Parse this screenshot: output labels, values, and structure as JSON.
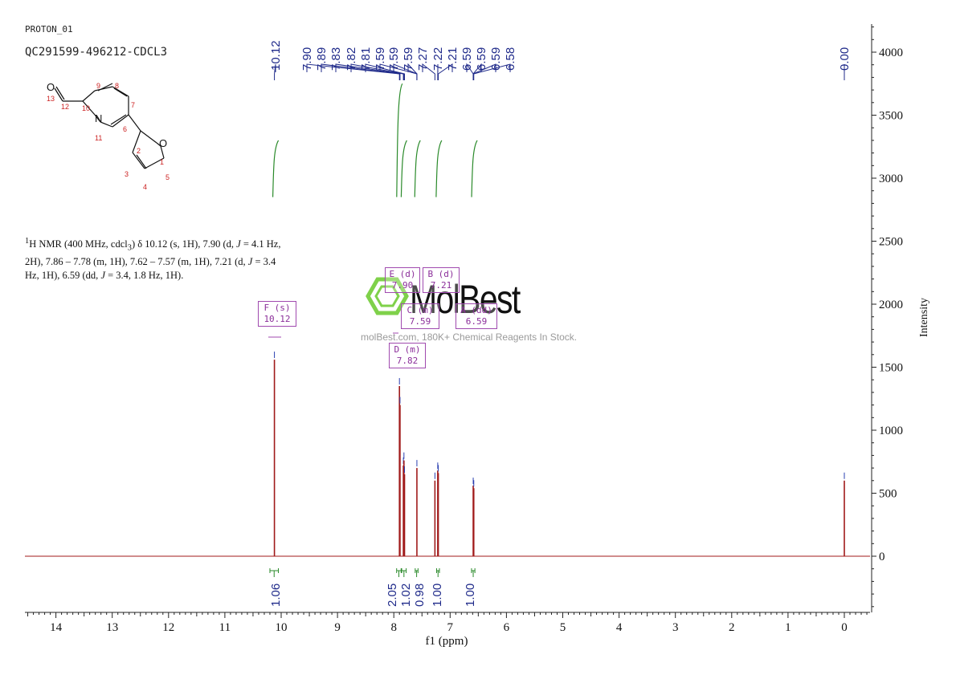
{
  "header": {
    "experiment": "PROTON_01",
    "sample": "QC291599-496212-CDCL3"
  },
  "description": {
    "sup": "1",
    "line1_a": "H NMR (400 MHz, cdcl",
    "line1_sub": "3",
    "line1_b": ") δ 10.12 (s, 1H), 7.90 (d, ",
    "j": "J",
    "line1_c": " = 4.1 Hz,",
    "line2_a": "2H), 7.86 – 7.78 (m, 1H), 7.62 – 7.57 (m, 1H), 7.21 (d, ",
    "line2_b": " = 3.4",
    "line3_a": "Hz, 1H), 6.59 (dd, ",
    "line3_b": " = 3.4, 1.8 Hz, 1H)."
  },
  "watermark": {
    "brand": "MolBest",
    "subtitle": "molBest.com, 180K+ Chemical Reagents In Stock."
  },
  "molecule": {
    "atoms": [
      "O",
      "13",
      "12",
      "9",
      "8",
      "10",
      "7",
      "N",
      "11",
      "6",
      "2",
      "O",
      "1",
      "5",
      "3",
      "4"
    ]
  },
  "multiplets": [
    {
      "label": "F (s)",
      "value": "10.12"
    },
    {
      "label": "E (d)",
      "value": "7.90"
    },
    {
      "label": "B (d)",
      "value": "7.21"
    },
    {
      "label": "C (m)",
      "value": "7.59"
    },
    {
      "label": "A (dd)",
      "value": "6.59"
    },
    {
      "label": "D (m)",
      "value": "7.82"
    }
  ],
  "peak_labels_top": [
    "10.12",
    "7.90",
    "7.89",
    "7.83",
    "7.82",
    "7.81",
    "7.59",
    "7.59",
    "7.59",
    "7.27",
    "7.22",
    "7.21",
    "6.59",
    "6.59",
    "6.59",
    "6.58",
    "0.00"
  ],
  "chart_data": {
    "type": "line",
    "xlabel": "f1 (ppm)",
    "ylabel": "Intensity",
    "xlim": [
      14.5,
      -0.45
    ],
    "ylim": [
      -400,
      4200
    ],
    "x_ticks": [
      14,
      13,
      12,
      11,
      10,
      9,
      8,
      7,
      6,
      5,
      4,
      3,
      2,
      1,
      0
    ],
    "y_ticks": [
      0,
      500,
      1000,
      1500,
      2000,
      2500,
      3000,
      3500,
      4000
    ],
    "peaks": [
      {
        "ppm": 10.12,
        "intensity": 1560
      },
      {
        "ppm": 7.9,
        "intensity": 1350
      },
      {
        "ppm": 7.89,
        "intensity": 1200
      },
      {
        "ppm": 7.83,
        "intensity": 720
      },
      {
        "ppm": 7.82,
        "intensity": 760
      },
      {
        "ppm": 7.81,
        "intensity": 650
      },
      {
        "ppm": 7.59,
        "intensity": 700
      },
      {
        "ppm": 7.27,
        "intensity": 600
      },
      {
        "ppm": 7.22,
        "intensity": 680
      },
      {
        "ppm": 7.21,
        "intensity": 660
      },
      {
        "ppm": 6.59,
        "intensity": 560
      },
      {
        "ppm": 6.58,
        "intensity": 540
      },
      {
        "ppm": 0.0,
        "intensity": 600
      }
    ],
    "integrals": [
      {
        "from": 10.2,
        "to": 10.05,
        "value": "1.06"
      },
      {
        "from": 7.95,
        "to": 7.87,
        "value": "2.05"
      },
      {
        "from": 7.86,
        "to": 7.78,
        "value": "1.02"
      },
      {
        "from": 7.62,
        "to": 7.57,
        "value": "0.98"
      },
      {
        "from": 7.24,
        "to": 7.19,
        "value": "1.00"
      },
      {
        "from": 6.62,
        "to": 6.56,
        "value": "1.00"
      }
    ],
    "integral_curves": [
      {
        "ppm": 10.12,
        "low": 2850,
        "high": 3300
      },
      {
        "ppm": 7.92,
        "low": 2850,
        "high": 3750
      },
      {
        "ppm": 7.84,
        "low": 2850,
        "high": 3300
      },
      {
        "ppm": 7.6,
        "low": 2850,
        "high": 3300
      },
      {
        "ppm": 7.22,
        "low": 2850,
        "high": 3300
      },
      {
        "ppm": 6.59,
        "low": 2850,
        "high": 3300
      }
    ]
  },
  "colors": {
    "spectrum": "#a01a1a",
    "axis": "#222222",
    "peak_label": "#1f2a8a",
    "integral": "#2a8a2a",
    "multiplet": "#a04aaf",
    "watermark_green": "#7fd14a"
  }
}
